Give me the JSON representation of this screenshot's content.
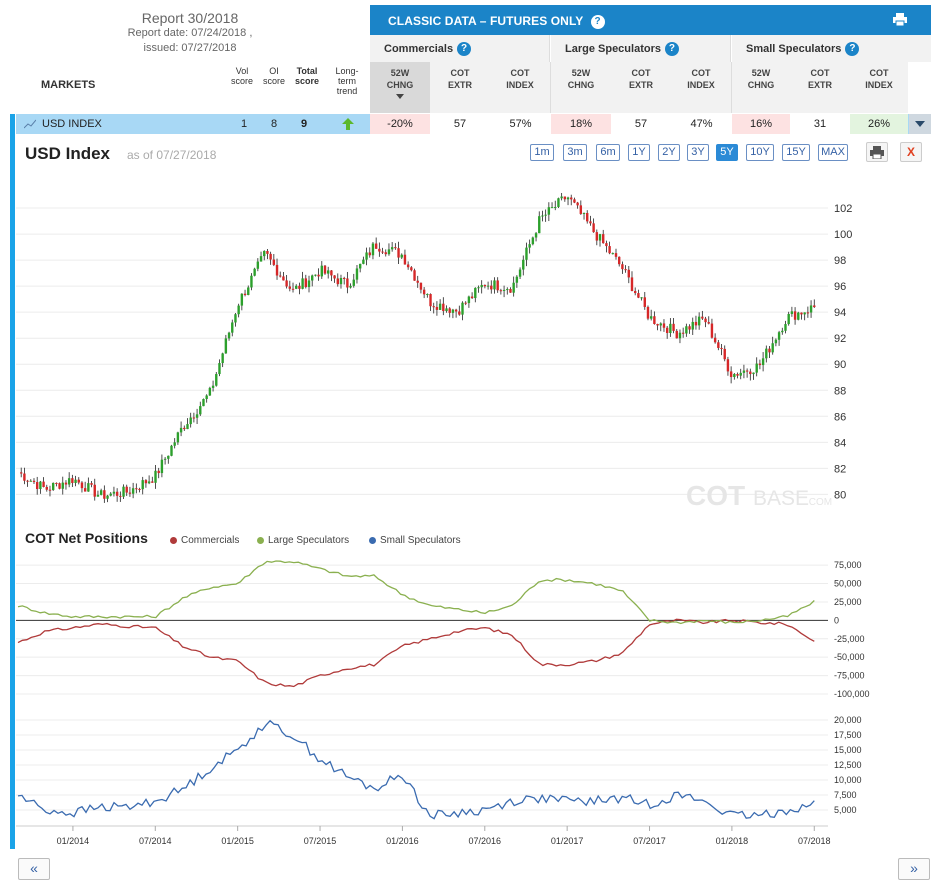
{
  "report": {
    "title": "Report 30/2018",
    "report_date": "Report date: 07/24/2018 ,",
    "issued": "issued: 07/27/2018"
  },
  "markets_label": "MARKETS",
  "score_headers": {
    "vol": [
      "Vol",
      "score"
    ],
    "oi": [
      "OI",
      "score"
    ],
    "total": [
      "Total",
      "score"
    ],
    "trend": [
      "Long-",
      "term",
      "trend"
    ]
  },
  "classic_bar": {
    "title": "CLASSIC DATA – FUTURES ONLY",
    "help": "?"
  },
  "groups": [
    {
      "label": "Commercials",
      "help": "?"
    },
    {
      "label": "Large Speculators",
      "help": "?"
    },
    {
      "label": "Small Speculators",
      "help": "?"
    }
  ],
  "columns": [
    [
      "52W",
      "CHNG"
    ],
    [
      "COT",
      "EXTR"
    ],
    [
      "COT",
      "INDEX"
    ],
    [
      "52W",
      "CHNG"
    ],
    [
      "COT",
      "EXTR"
    ],
    [
      "COT",
      "INDEX"
    ],
    [
      "52W",
      "CHNG"
    ],
    [
      "COT",
      "EXTR"
    ],
    [
      "COT",
      "INDEX"
    ]
  ],
  "row": {
    "name": "USD INDEX",
    "vol_score": "1",
    "oi_score": "8",
    "total_score": "9",
    "values": [
      "-20%",
      "57",
      "57%",
      "18%",
      "57",
      "47%",
      "16%",
      "31",
      "26%"
    ]
  },
  "chart": {
    "title": "USD Index",
    "as_of": "as of 07/27/2018",
    "ranges": [
      "1m",
      "3m",
      "6m",
      "1Y",
      "2Y",
      "3Y",
      "5Y",
      "10Y",
      "15Y",
      "MAX"
    ],
    "active_range": "5Y",
    "watermark_a": "COT",
    "watermark_b": "BASE",
    "watermark_c": ".COM",
    "close_label": "X"
  },
  "cot": {
    "title": "COT Net Positions",
    "legend": [
      "Commercials",
      "Large Speculators",
      "Small Speculators"
    ]
  },
  "nav": {
    "prev": "«",
    "next": "»"
  },
  "colors": {
    "accent": "#1b84c8",
    "row_highlight": "#a8d8f5",
    "up_candle": "#2ca02c",
    "down_candle": "#d62728",
    "commercials": "#b03a3a",
    "large_speculators": "#8ab04f",
    "small_speculators": "#3a6bb0"
  },
  "chart_data": [
    {
      "type": "line",
      "title": "USD Index",
      "note": "candlestick price chart, weekly, approximated",
      "x_ticks": [
        "01/2014",
        "07/2014",
        "01/2015",
        "07/2015",
        "01/2016",
        "07/2016",
        "01/2017",
        "07/2017",
        "01/2018",
        "07/2018"
      ],
      "y_ticks": [
        80,
        82,
        84,
        86,
        88,
        90,
        92,
        94,
        96,
        98,
        100,
        102
      ],
      "ylim": [
        78.8,
        104
      ],
      "x": [
        "2013-09",
        "2013-11",
        "2014-01",
        "2014-03",
        "2014-05",
        "2014-07",
        "2014-09",
        "2014-11",
        "2015-01",
        "2015-03",
        "2015-05",
        "2015-07",
        "2015-09",
        "2015-11",
        "2016-01",
        "2016-03",
        "2016-05",
        "2016-07",
        "2016-09",
        "2016-11",
        "2017-01",
        "2017-03",
        "2017-05",
        "2017-07",
        "2017-09",
        "2017-11",
        "2018-01",
        "2018-03",
        "2018-05",
        "2018-07"
      ],
      "values": [
        81.7,
        80.4,
        81.2,
        79.9,
        80.2,
        81.4,
        85.2,
        87.8,
        94.6,
        98.5,
        95.6,
        97.2,
        96.1,
        99.2,
        98.4,
        94.8,
        94.1,
        96.2,
        95.9,
        101.1,
        102.9,
        100.1,
        97.4,
        93.6,
        92.4,
        93.5,
        89.2,
        89.9,
        93.6,
        94.4
      ]
    },
    {
      "type": "line",
      "title": "COT Net Positions",
      "y_ticks": [
        -100000,
        -75000,
        -50000,
        -25000,
        0,
        25000,
        50000,
        75000
      ],
      "ylim": [
        -100000,
        82000
      ],
      "x": [
        "2013-09",
        "2013-11",
        "2014-01",
        "2014-03",
        "2014-05",
        "2014-07",
        "2014-09",
        "2014-11",
        "2015-01",
        "2015-03",
        "2015-05",
        "2015-07",
        "2015-09",
        "2015-11",
        "2016-01",
        "2016-03",
        "2016-05",
        "2016-07",
        "2016-09",
        "2016-11",
        "2017-01",
        "2017-03",
        "2017-05",
        "2017-07",
        "2017-09",
        "2017-11",
        "2018-01",
        "2018-03",
        "2018-05",
        "2018-07"
      ],
      "series": [
        {
          "name": "Commercials",
          "values": [
            -30000,
            -15000,
            -10000,
            -5000,
            -8000,
            -10000,
            -35000,
            -50000,
            -55000,
            -85000,
            -90000,
            -75000,
            -65000,
            -60000,
            -35000,
            -25000,
            -15000,
            -10000,
            -20000,
            -60000,
            -60000,
            -55000,
            -45000,
            -5000,
            0,
            -3000,
            0,
            -3000,
            -5000,
            -28000
          ]
        },
        {
          "name": "Large Speculators",
          "values": [
            20000,
            10000,
            5000,
            5000,
            5000,
            5000,
            30000,
            45000,
            50000,
            80000,
            80000,
            70000,
            60000,
            60000,
            35000,
            20000,
            15000,
            10000,
            20000,
            55000,
            55000,
            50000,
            40000,
            0,
            -3000,
            0,
            -3000,
            0,
            5000,
            25000
          ]
        }
      ]
    },
    {
      "type": "line",
      "title": "Small Speculators",
      "y_ticks": [
        5000,
        7500,
        10000,
        12500,
        15000,
        17500,
        20000
      ],
      "ylim": [
        2500,
        21500
      ],
      "x": [
        "2013-09",
        "2013-11",
        "2014-01",
        "2014-03",
        "2014-05",
        "2014-07",
        "2014-09",
        "2014-11",
        "2015-01",
        "2015-03",
        "2015-05",
        "2015-07",
        "2015-09",
        "2015-11",
        "2016-01",
        "2016-03",
        "2016-05",
        "2016-07",
        "2016-09",
        "2016-11",
        "2017-01",
        "2017-03",
        "2017-05",
        "2017-07",
        "2017-09",
        "2017-11",
        "2018-01",
        "2018-03",
        "2018-05",
        "2018-07"
      ],
      "series": [
        {
          "name": "Small Speculators",
          "values": [
            7500,
            5000,
            4500,
            5500,
            5500,
            6500,
            8500,
            12000,
            15000,
            19500,
            17500,
            13500,
            10500,
            8500,
            11000,
            4000,
            4500,
            5000,
            6500,
            7000,
            6500,
            6500,
            7000,
            6000,
            7500,
            6500,
            4000,
            4000,
            5000,
            6000
          ]
        }
      ]
    }
  ]
}
